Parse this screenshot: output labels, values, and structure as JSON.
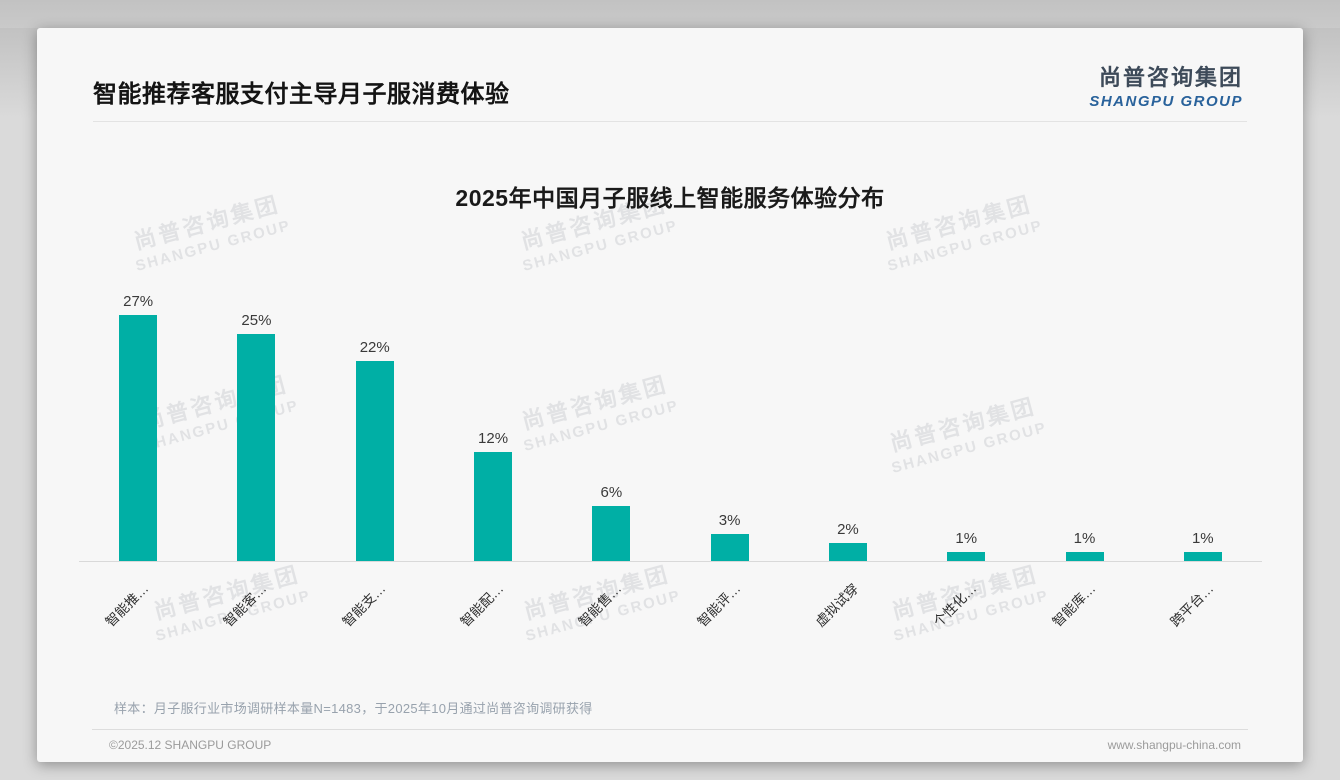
{
  "page": {
    "title": "智能推荐客服支付主导月子服消费体验"
  },
  "logo": {
    "cn": "尚普咨询集团",
    "en": "SHANGPU GROUP"
  },
  "watermark": {
    "cn": "尚普咨询集团",
    "en": "SHANGPU GROUP"
  },
  "chart_data": {
    "type": "bar",
    "title": "2025年中国月子服线上智能服务体验分布",
    "categories": [
      "智能推…",
      "智能客…",
      "智能支…",
      "智能配…",
      "智能售…",
      "智能评…",
      "虚拟试穿",
      "个性化…",
      "智能库…",
      "跨平台…"
    ],
    "values": [
      27,
      25,
      22,
      12,
      6,
      3,
      2,
      1,
      1,
      1
    ],
    "value_suffix": "%",
    "bar_color": "#00AFA5",
    "xlabel": "",
    "ylabel": "",
    "ylim": [
      0,
      30
    ],
    "grid": false,
    "legend": null,
    "label_position": "above-bars"
  },
  "footnote": "样本：月子服行业市场调研样本量N=1483，于2025年10月通过尚普咨询调研获得",
  "footer": {
    "left": "©2025.12 SHANGPU GROUP",
    "right": "www.shangpu-china.com"
  }
}
